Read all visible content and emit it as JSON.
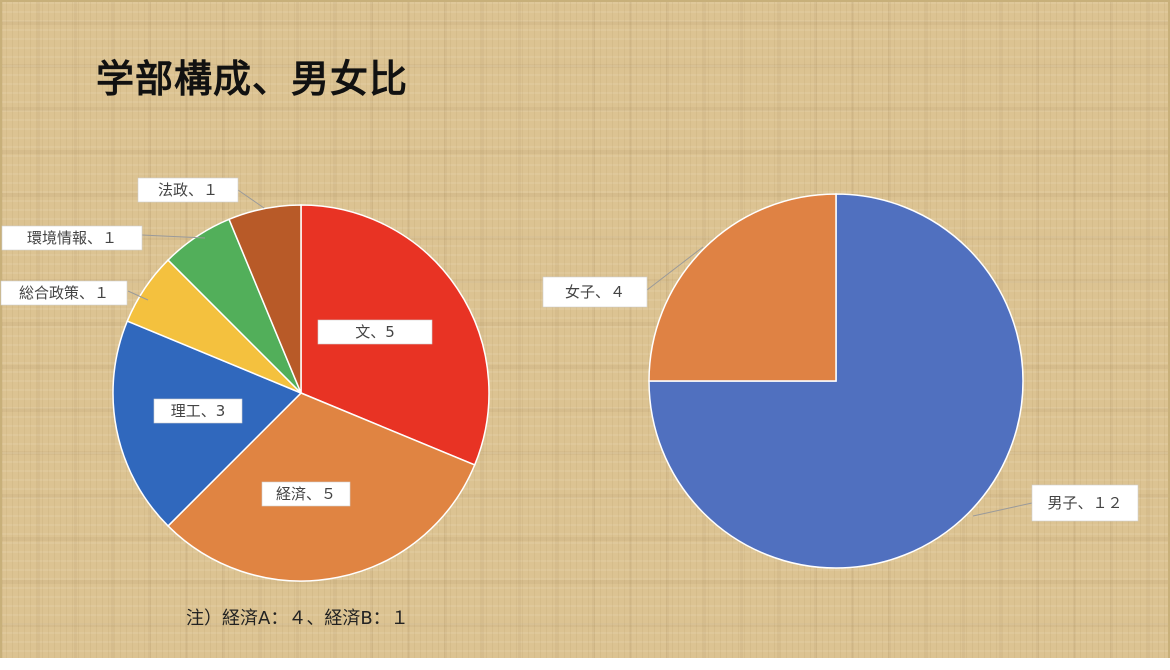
{
  "slide": {
    "title": "学部構成、男女比",
    "footnote": "注）経済A：４、経済B：１"
  },
  "chart_data": [
    {
      "type": "pie",
      "title": "",
      "start_angle_deg": 0,
      "direction": "clockwise",
      "slices": [
        {
          "label": "文",
          "value": 5,
          "data_label": "文、5",
          "color": "#e83324"
        },
        {
          "label": "経済",
          "value": 5,
          "data_label": "経済、５",
          "color": "#e08442"
        },
        {
          "label": "理工",
          "value": 3,
          "data_label": "理工、3",
          "color": "#3068bd"
        },
        {
          "label": "総合政策",
          "value": 1,
          "data_label": "総合政策、１",
          "color": "#f4c13e"
        },
        {
          "label": "環境情報",
          "value": 1,
          "data_label": "環境情報、１",
          "color": "#52af5a"
        },
        {
          "label": "法政",
          "value": 1,
          "data_label": "法政、１",
          "color": "#b85a28"
        }
      ]
    },
    {
      "type": "pie",
      "title": "",
      "start_angle_deg": 0,
      "direction": "clockwise",
      "slices": [
        {
          "label": "男子",
          "value": 12,
          "data_label": "男子、１２",
          "color": "#5070bf"
        },
        {
          "label": "女子",
          "value": 4,
          "data_label": "女子、４",
          "color": "#df8244"
        }
      ]
    }
  ]
}
